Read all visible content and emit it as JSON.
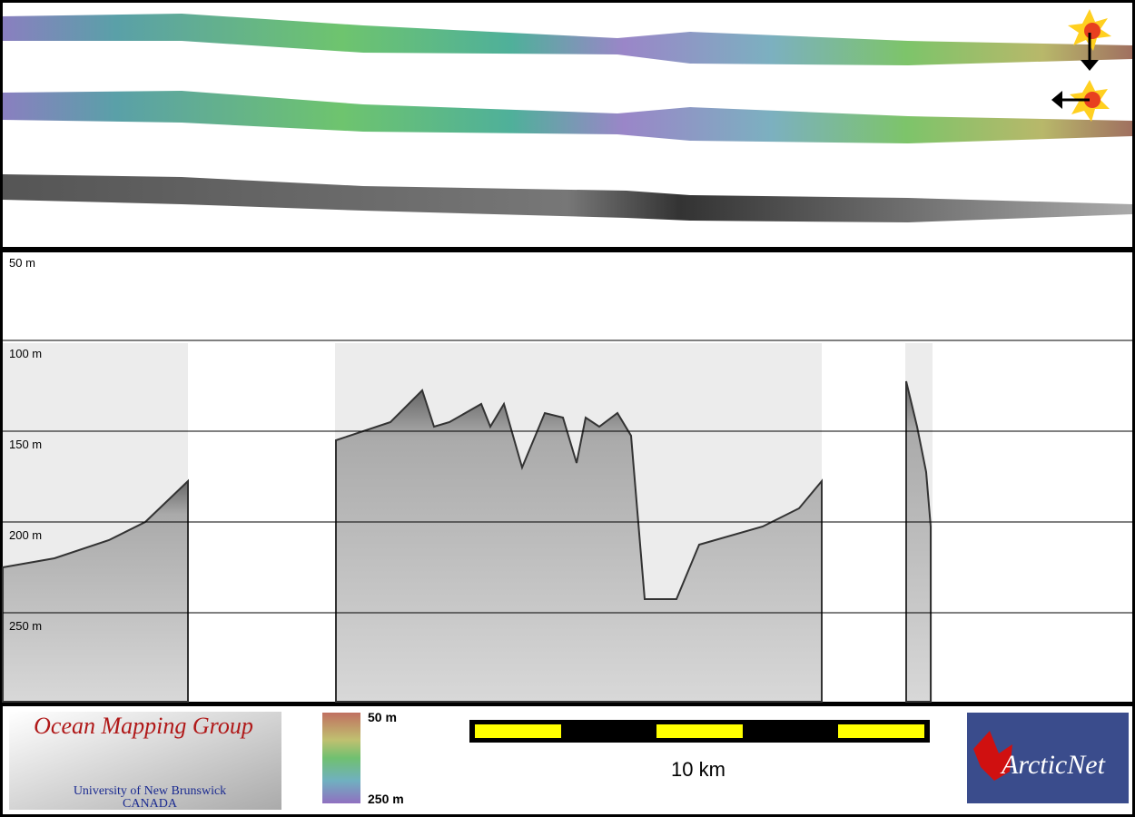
{
  "depth_axis": {
    "labels": [
      "50 m",
      "100 m",
      "150 m",
      "200 m",
      "250 m"
    ]
  },
  "logo_left": {
    "title": "Ocean Mapping Group",
    "line1": "University of New Brunswick",
    "line2": "CANADA"
  },
  "colorbar": {
    "top_label": "50 m",
    "bottom_label": "250 m"
  },
  "scale_bar": {
    "label": "10 km"
  },
  "logo_right": {
    "title": "ArcticNet"
  }
}
